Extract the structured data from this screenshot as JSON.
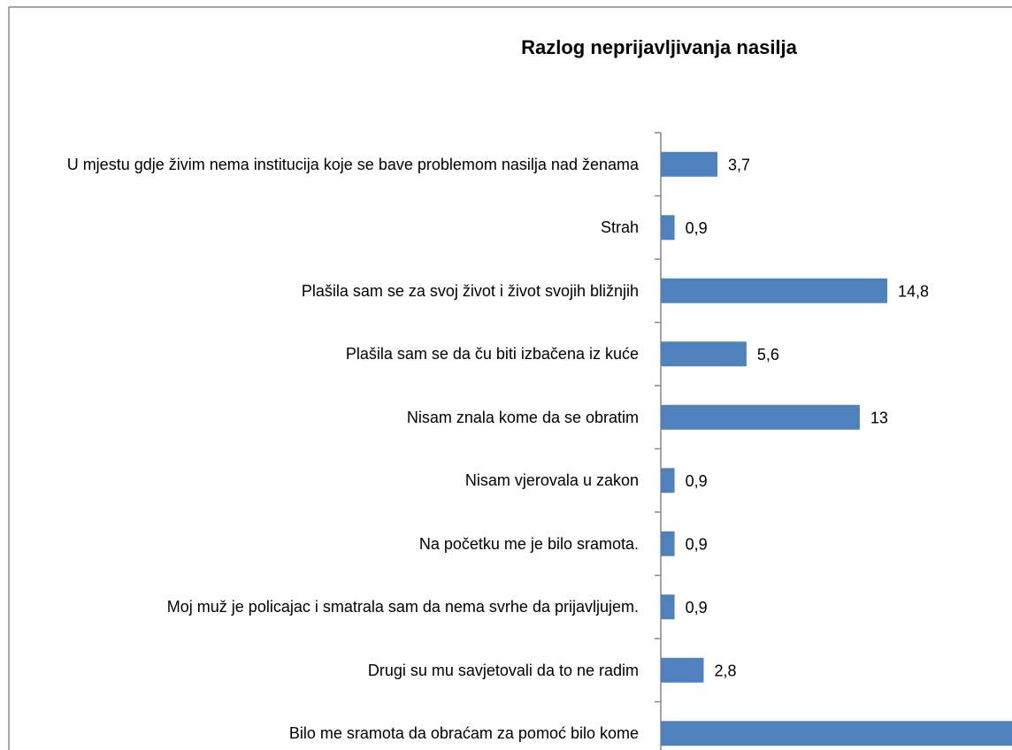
{
  "chart_data": {
    "type": "bar",
    "orientation": "horizontal",
    "title": "Razlog neprijavljivanja nasilja",
    "categories": [
      "U mjestu gdje živim nema institucija koje se bave problemom nasilja nad ženama",
      "Strah",
      "Plašila sam se za svoj život i život svojih bližnjih",
      "Plašila sam se da ču biti izbačena iz kuće",
      "Nisam znala kome da se obratim",
      "Nisam vjerovala u zakon",
      "Na početku me je bilo sramota.",
      "Moj muž je policajac i smatrala sam da nema svrhe da prijavljujem.",
      "Drugi su mu savjetovali da to ne radim",
      "Bilo me sramota da obraćam za pomoć bilo kome"
    ],
    "values": [
      3.7,
      0.9,
      14.8,
      5.6,
      13,
      0.9,
      0.9,
      0.9,
      2.8,
      24
    ],
    "value_labels": [
      "3,7",
      "0,9",
      "14,8",
      "5,6",
      "13",
      "0,9",
      "0,9",
      "0,9",
      "2,8",
      null
    ],
    "color": "#4f81bd"
  }
}
